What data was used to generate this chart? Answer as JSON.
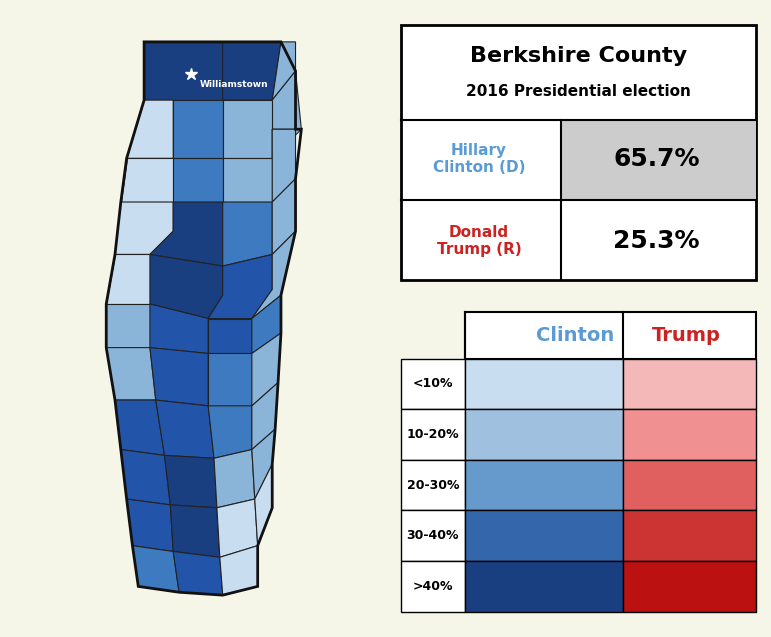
{
  "background_color": "#f5f5e8",
  "title_top": "Berkshire County",
  "title_sub": "2016 Presidential election",
  "clinton_label": "Hillary\nClinton (D)",
  "trump_label": "Donald\nTrump (R)",
  "clinton_pct": "65.7%",
  "trump_pct": "25.3%",
  "clinton_color": "#5b9bd5",
  "trump_color": "#cc2222",
  "clinton_pct_bg": "#cccccc",
  "trump_pct_bg": "#ffffff",
  "legend_labels": [
    "<10%",
    "10-20%",
    "20-30%",
    "30-40%",
    ">40%"
  ],
  "clinton_legend_colors": [
    "#c8ddf0",
    "#a0c0e0",
    "#6699cc",
    "#3366aa",
    "#1a3f80"
  ],
  "trump_legend_colors": [
    "#f5b8b8",
    "#f09090",
    "#e06060",
    "#cc3333",
    "#bb1111"
  ],
  "williamstown_label": "Williamstown",
  "map_outline_color": "#222222",
  "map_fill_colors": {
    "dark_blue": "#1a3f80",
    "med_dark_blue": "#2255aa",
    "med_blue": "#3d7abf",
    "light_blue": "#8ab4d8",
    "very_light_blue": "#c8ddf0"
  }
}
